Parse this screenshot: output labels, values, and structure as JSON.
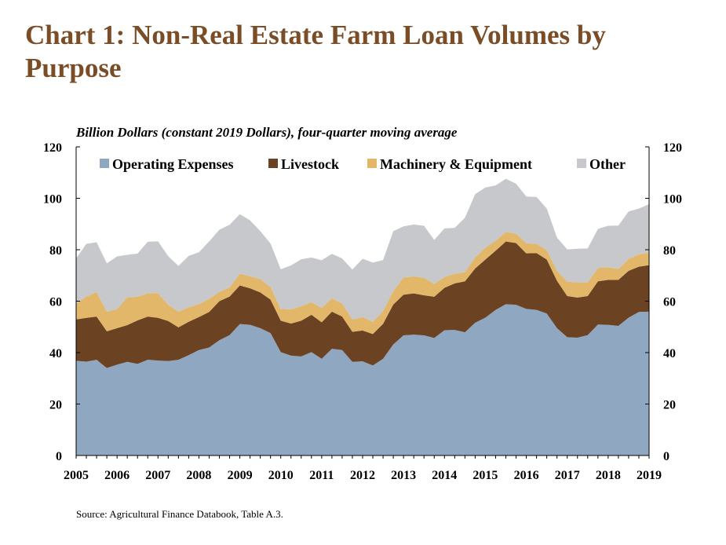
{
  "title": "Chart 1: Non-Real Estate Farm Loan Volumes by Purpose",
  "subtitle": "Billion Dollars (constant 2019 Dollars), four-quarter moving average",
  "source": "Source: Agricultural Finance Databook, Table A.3.",
  "colors": {
    "operating": "#90a7c1",
    "livestock": "#6b4222",
    "machinery": "#e3b76a",
    "other": "#c6c8cb",
    "title": "#7a4d27"
  },
  "chart_data": {
    "type": "area",
    "stacked": true,
    "title": "Chart 1: Non-Real Estate Farm Loan Volumes by Purpose",
    "ylabel": "Billion Dollars (constant 2019 Dollars), four-quarter moving average",
    "xlim": [
      2005,
      2019
    ],
    "ylim": [
      0,
      120
    ],
    "yticks": [
      0,
      20,
      40,
      60,
      80,
      100,
      120
    ],
    "xticks": [
      "2005",
      "2006",
      "2007",
      "2008",
      "2009",
      "2010",
      "2011",
      "2012",
      "2013",
      "2014",
      "2015",
      "2016",
      "2017",
      "2018",
      "2019"
    ],
    "legend_position": "top",
    "secondary_y_axis": true,
    "x": [
      2005.0,
      2005.25,
      2005.5,
      2005.75,
      2006.0,
      2006.25,
      2006.5,
      2006.75,
      2007.0,
      2007.25,
      2007.5,
      2007.75,
      2008.0,
      2008.25,
      2008.5,
      2008.75,
      2009.0,
      2009.25,
      2009.5,
      2009.75,
      2010.0,
      2010.25,
      2010.5,
      2010.75,
      2011.0,
      2011.25,
      2011.5,
      2011.75,
      2012.0,
      2012.25,
      2012.5,
      2012.75,
      2013.0,
      2013.25,
      2013.5,
      2013.75,
      2014.0,
      2014.25,
      2014.5,
      2014.75,
      2015.0,
      2015.25,
      2015.5,
      2015.75,
      2016.0,
      2016.25,
      2016.5,
      2016.75,
      2017.0,
      2017.25,
      2017.5,
      2017.75,
      2018.0,
      2018.25,
      2018.5,
      2018.75,
      2019.0
    ],
    "series": [
      {
        "name": "Operating Expenses",
        "color": "#90a7c1",
        "values": [
          36.8,
          36.5,
          37.2,
          34.0,
          35.3,
          36.4,
          35.6,
          37.2,
          36.9,
          36.7,
          37.2,
          39.0,
          41.0,
          42.0,
          44.8,
          46.8,
          51.1,
          50.8,
          49.5,
          47.6,
          40.2,
          38.8,
          38.5,
          40.2,
          37.6,
          41.5,
          41.0,
          36.4,
          36.6,
          35.0,
          37.6,
          43.2,
          46.7,
          47.0,
          46.7,
          45.7,
          48.7,
          48.8,
          47.9,
          51.6,
          53.6,
          56.6,
          58.8,
          58.6,
          57.0,
          56.6,
          55.2,
          49.5,
          46.0,
          45.8,
          46.8,
          50.9,
          50.8,
          50.4,
          53.6,
          55.8,
          55.9
        ]
      },
      {
        "name": "Livestock",
        "color": "#6b4222",
        "values": [
          16.1,
          17.0,
          16.8,
          14.3,
          14.2,
          14.3,
          16.9,
          16.8,
          16.6,
          15.6,
          12.6,
          13.0,
          12.8,
          13.8,
          15.2,
          15.0,
          15.0,
          14.2,
          13.9,
          13.0,
          12.2,
          12.5,
          13.9,
          14.5,
          14.2,
          14.4,
          13.0,
          11.7,
          12.0,
          12.2,
          13.6,
          15.5,
          15.8,
          16.0,
          15.6,
          16.0,
          16.5,
          18.1,
          19.8,
          21.1,
          22.6,
          23.0,
          24.4,
          24.0,
          21.6,
          22.1,
          21.0,
          18.4,
          16.0,
          15.6,
          15.2,
          16.8,
          17.5,
          17.9,
          18.2,
          17.6,
          18.1
        ]
      },
      {
        "name": "Machinery & Equipment",
        "color": "#e3b76a",
        "values": [
          6.1,
          8.3,
          9.6,
          7.6,
          7.4,
          10.8,
          9.2,
          9.1,
          9.6,
          6.3,
          6.1,
          5.6,
          5.0,
          5.1,
          3.6,
          3.6,
          4.6,
          4.7,
          5.2,
          4.9,
          4.6,
          5.5,
          5.6,
          4.9,
          5.6,
          5.2,
          5.1,
          4.8,
          5.2,
          4.8,
          4.9,
          5.2,
          6.7,
          6.6,
          6.8,
          5.0,
          4.2,
          3.8,
          3.6,
          4.3,
          4.6,
          3.9,
          3.7,
          3.6,
          3.9,
          3.6,
          3.7,
          3.9,
          5.6,
          5.9,
          5.3,
          5.2,
          4.9,
          4.2,
          4.6,
          4.8,
          4.9
        ]
      },
      {
        "name": "Other",
        "color": "#c6c8cb",
        "values": [
          17.6,
          20.5,
          19.3,
          18.8,
          20.5,
          16.5,
          16.8,
          20.0,
          20.2,
          18.9,
          17.8,
          20.0,
          20.2,
          22.3,
          24.2,
          24.3,
          23.1,
          21.7,
          18.6,
          16.9,
          15.4,
          17.1,
          18.3,
          17.4,
          18.5,
          17.3,
          17.5,
          19.4,
          22.7,
          23.0,
          19.9,
          23.3,
          19.9,
          20.2,
          20.2,
          17.1,
          18.9,
          17.8,
          21.1,
          24.6,
          23.4,
          21.5,
          20.7,
          19.5,
          18.2,
          18.2,
          16.1,
          12.9,
          12.5,
          13.1,
          13.2,
          15.2,
          16.1,
          16.9,
          18.5,
          17.8,
          18.8
        ]
      }
    ]
  }
}
